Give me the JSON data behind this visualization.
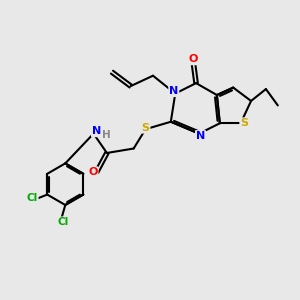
{
  "bg_color": "#e8e8e8",
  "atom_colors": {
    "C": "#000000",
    "N": "#0000ff",
    "O": "#ff0000",
    "S": "#ccaa00",
    "Cl": "#00aa00",
    "H": "#888888"
  },
  "bond_color": "#000000",
  "figsize": [
    3.0,
    3.0
  ],
  "dpi": 100
}
